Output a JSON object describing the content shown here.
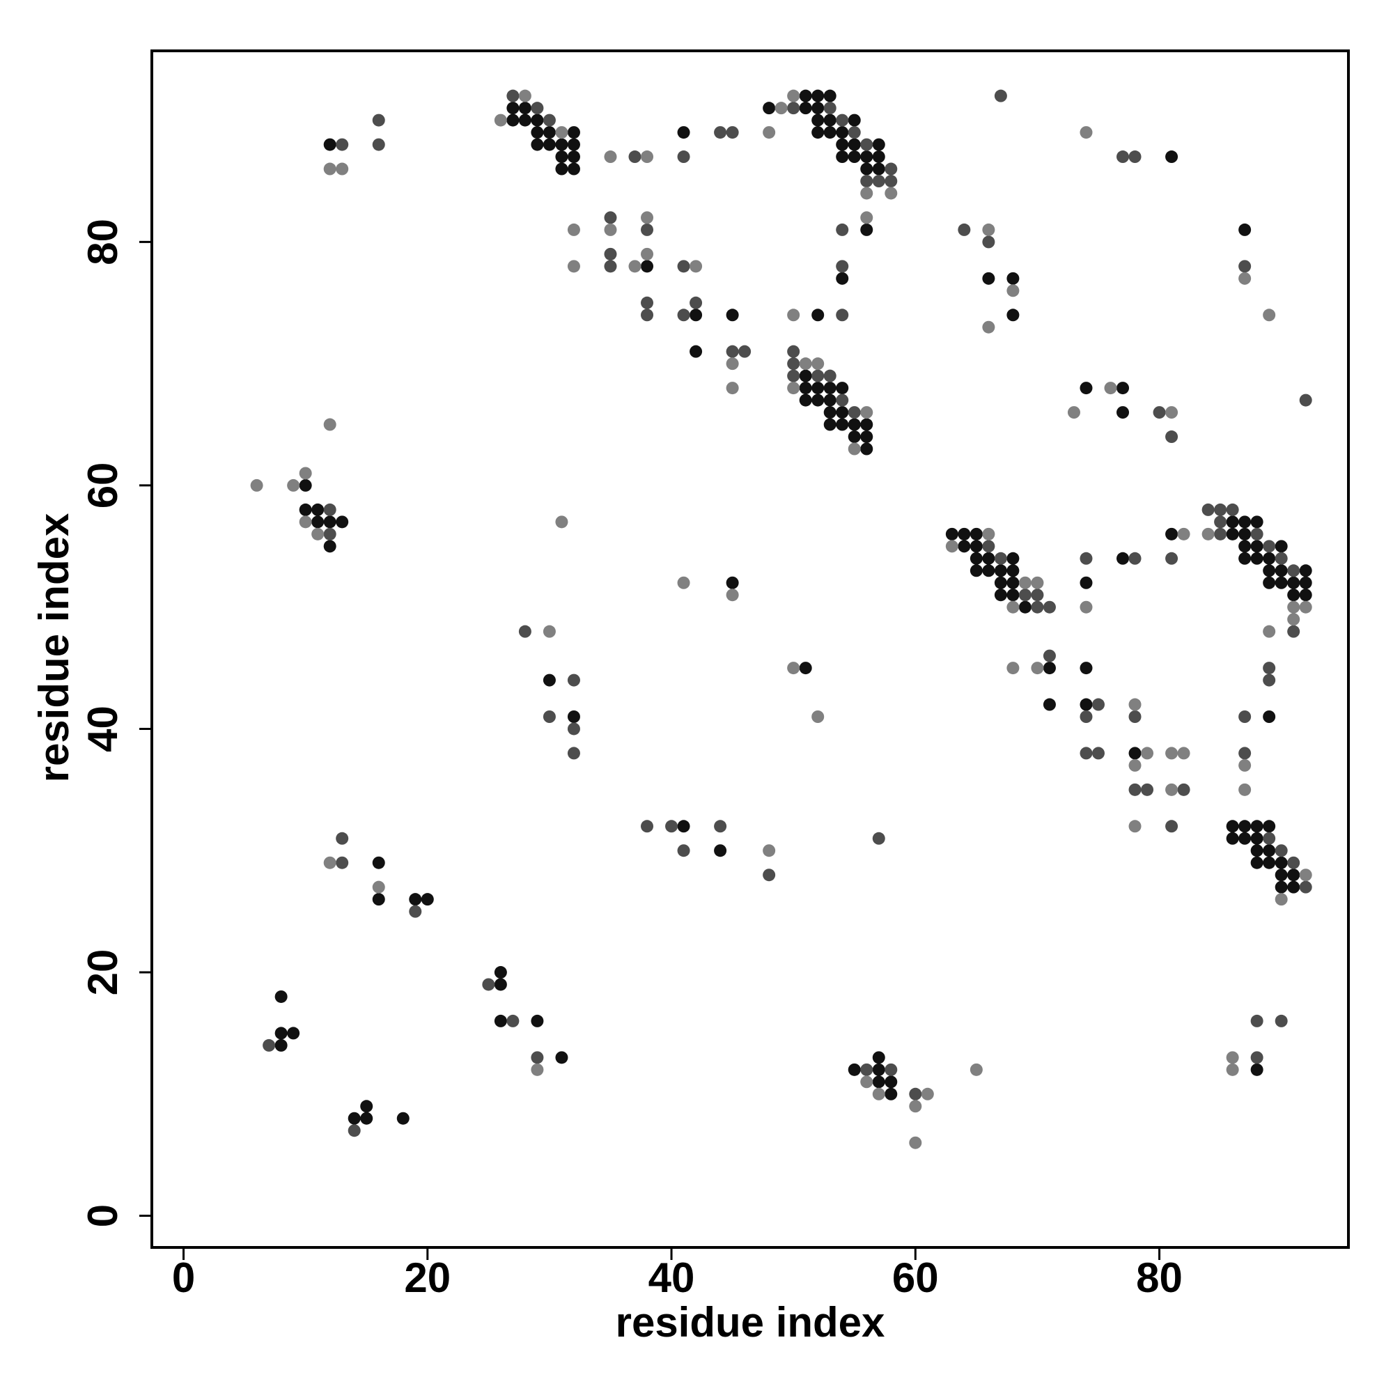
{
  "chart_data": {
    "type": "scatter",
    "xlabel": "residue index",
    "ylabel": "residue index",
    "xlim": [
      -2.6,
      95.5
    ],
    "ylim": [
      -2.6,
      95.7
    ],
    "xticks": [
      0,
      20,
      40,
      60,
      80
    ],
    "yticks": [
      0,
      20,
      40,
      60,
      80
    ],
    "series": [
      {
        "color": "#111111",
        "x": [
          51,
          52,
          53,
          27,
          28,
          48,
          51,
          52,
          27,
          28,
          29,
          52,
          53,
          55,
          29,
          30,
          32,
          41,
          52,
          53,
          54,
          12,
          29,
          30,
          31,
          32,
          54,
          55,
          57,
          31,
          32,
          54,
          55,
          56,
          57,
          81,
          31,
          32,
          56,
          57,
          56,
          87,
          38,
          54,
          66,
          68,
          42,
          45,
          52,
          68,
          42,
          51,
          51,
          52,
          53,
          54,
          74,
          77,
          51,
          52,
          53,
          53,
          54,
          77,
          53,
          54,
          55,
          56,
          55,
          56,
          56,
          10,
          10,
          11,
          11,
          12,
          13,
          86,
          87,
          88,
          63,
          64,
          65,
          81,
          86,
          87,
          12,
          64,
          65,
          87,
          88,
          90,
          65,
          66,
          68,
          77,
          87,
          88,
          89,
          65,
          66,
          67,
          68,
          89,
          90,
          92,
          45,
          67,
          68,
          74,
          89,
          90,
          91,
          92,
          67,
          68,
          91,
          92,
          69,
          51,
          71,
          74,
          30,
          71,
          74,
          32,
          89,
          78,
          41,
          86,
          87,
          88,
          89,
          86,
          87,
          88,
          44,
          88,
          89,
          16,
          88,
          89,
          90,
          90,
          91,
          90,
          91,
          16,
          19,
          20,
          26,
          26,
          8,
          26,
          29,
          8,
          9,
          8,
          31,
          57,
          55,
          57,
          88,
          57,
          58,
          58,
          15,
          14,
          15,
          18
        ],
        "y": [
          92,
          92,
          92,
          91,
          91,
          91,
          91,
          91,
          90,
          90,
          90,
          90,
          90,
          90,
          89,
          89,
          89,
          89,
          89,
          89,
          89,
          88,
          88,
          88,
          88,
          88,
          88,
          88,
          88,
          87,
          87,
          87,
          87,
          87,
          87,
          87,
          86,
          86,
          86,
          86,
          81,
          81,
          78,
          77,
          77,
          77,
          74,
          74,
          74,
          74,
          71,
          69,
          68,
          68,
          68,
          68,
          68,
          68,
          67,
          67,
          67,
          66,
          66,
          66,
          65,
          65,
          65,
          65,
          64,
          64,
          63,
          60,
          58,
          58,
          57,
          57,
          57,
          57,
          57,
          57,
          56,
          56,
          56,
          56,
          56,
          56,
          55,
          55,
          55,
          55,
          55,
          55,
          54,
          54,
          54,
          54,
          54,
          54,
          54,
          53,
          53,
          53,
          53,
          53,
          53,
          53,
          52,
          52,
          52,
          52,
          52,
          52,
          52,
          52,
          51,
          51,
          51,
          51,
          50,
          45,
          45,
          45,
          44,
          42,
          42,
          41,
          41,
          38,
          32,
          32,
          32,
          32,
          32,
          31,
          31,
          31,
          30,
          30,
          30,
          29,
          29,
          29,
          29,
          28,
          28,
          27,
          27,
          26,
          26,
          26,
          20,
          19,
          18,
          16,
          16,
          15,
          15,
          14,
          13,
          13,
          12,
          12,
          12,
          11,
          11,
          10,
          9,
          8,
          8,
          8
        ]
      },
      {
        "color": "#4d4d4d",
        "x": [
          27,
          67,
          29,
          50,
          53,
          16,
          30,
          54,
          44,
          45,
          55,
          13,
          16,
          56,
          37,
          41,
          77,
          78,
          58,
          56,
          57,
          58,
          35,
          38,
          54,
          64,
          66,
          35,
          35,
          41,
          54,
          87,
          38,
          42,
          38,
          41,
          54,
          45,
          46,
          50,
          50,
          50,
          52,
          53,
          54,
          92,
          55,
          80,
          81,
          12,
          84,
          85,
          86,
          85,
          12,
          85,
          88,
          66,
          89,
          67,
          74,
          78,
          81,
          90,
          91,
          69,
          70,
          70,
          71,
          28,
          91,
          71,
          89,
          32,
          89,
          75,
          30,
          74,
          78,
          87,
          32,
          32,
          74,
          75,
          87,
          78,
          79,
          82,
          38,
          40,
          44,
          81,
          13,
          57,
          89,
          41,
          90,
          13,
          91,
          48,
          92,
          19,
          25,
          27,
          88,
          90,
          7,
          29,
          88,
          56,
          58,
          60,
          14
        ],
        "y": [
          92,
          92,
          91,
          91,
          91,
          90,
          90,
          90,
          89,
          89,
          89,
          88,
          88,
          88,
          87,
          87,
          87,
          87,
          86,
          85,
          85,
          85,
          82,
          81,
          81,
          81,
          80,
          79,
          78,
          78,
          78,
          78,
          75,
          75,
          74,
          74,
          74,
          71,
          71,
          71,
          70,
          69,
          69,
          69,
          67,
          67,
          66,
          66,
          64,
          58,
          58,
          58,
          58,
          57,
          56,
          56,
          56,
          55,
          55,
          54,
          54,
          54,
          54,
          54,
          53,
          51,
          51,
          50,
          50,
          48,
          48,
          46,
          45,
          44,
          44,
          42,
          41,
          41,
          41,
          41,
          40,
          38,
          38,
          38,
          38,
          35,
          35,
          35,
          32,
          32,
          32,
          32,
          31,
          31,
          31,
          30,
          30,
          29,
          29,
          28,
          27,
          25,
          19,
          16,
          16,
          16,
          14,
          13,
          13,
          12,
          12,
          10,
          7
        ]
      },
      {
        "color": "#808080",
        "x": [
          28,
          50,
          49,
          26,
          31,
          48,
          74,
          35,
          38,
          12,
          13,
          56,
          58,
          38,
          56,
          32,
          35,
          66,
          38,
          32,
          37,
          42,
          87,
          68,
          50,
          89,
          66,
          45,
          51,
          52,
          45,
          50,
          76,
          56,
          73,
          81,
          12,
          55,
          10,
          6,
          9,
          10,
          31,
          11,
          66,
          82,
          84,
          63,
          41,
          69,
          70,
          45,
          68,
          74,
          91,
          92,
          91,
          30,
          89,
          50,
          68,
          70,
          78,
          52,
          79,
          81,
          82,
          78,
          87,
          81,
          87,
          78,
          48,
          12,
          92,
          16,
          90,
          86,
          29,
          65,
          86,
          56,
          57,
          61,
          60,
          60
        ],
        "y": [
          92,
          92,
          91,
          90,
          89,
          89,
          89,
          87,
          87,
          86,
          86,
          84,
          84,
          82,
          82,
          81,
          81,
          81,
          79,
          78,
          78,
          78,
          77,
          76,
          74,
          74,
          73,
          70,
          70,
          70,
          68,
          68,
          68,
          66,
          66,
          66,
          65,
          63,
          61,
          60,
          60,
          57,
          57,
          56,
          56,
          56,
          56,
          55,
          52,
          52,
          52,
          51,
          50,
          50,
          50,
          50,
          49,
          48,
          48,
          45,
          45,
          45,
          42,
          41,
          38,
          38,
          38,
          37,
          37,
          35,
          35,
          32,
          30,
          29,
          28,
          27,
          26,
          13,
          12,
          12,
          12,
          11,
          10,
          10,
          9,
          6
        ]
      }
    ]
  }
}
